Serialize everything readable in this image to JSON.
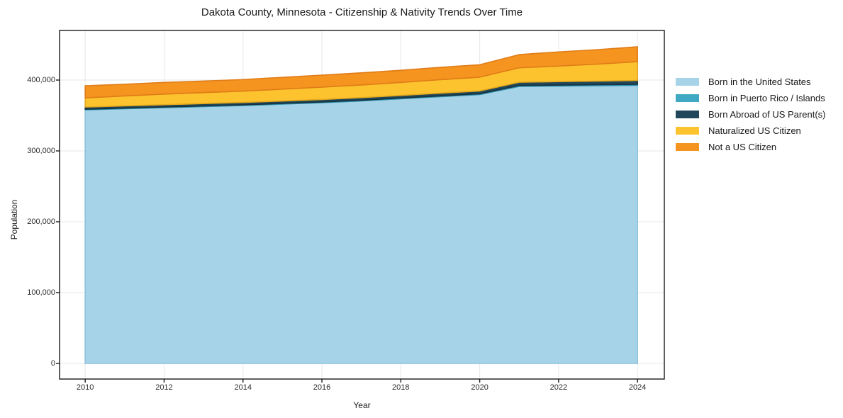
{
  "chart_data": {
    "type": "area",
    "stacked": true,
    "title": "Dakota County, Minnesota - Citizenship & Nativity Trends Over Time",
    "xlabel": "Year",
    "ylabel": "Population",
    "x": [
      2010,
      2011,
      2012,
      2013,
      2014,
      2015,
      2016,
      2017,
      2018,
      2019,
      2020,
      2021,
      2022,
      2023,
      2024
    ],
    "series": [
      {
        "name": "Born in the United States",
        "color": "#a6d3e8",
        "edge_color": "#8cc1dc",
        "values": [
          358000,
          359500,
          361000,
          362500,
          364000,
          366000,
          368000,
          370500,
          373500,
          376500,
          379500,
          391000,
          391500,
          392000,
          392500
        ]
      },
      {
        "name": "Born in Puerto Rico / Islands",
        "color": "#3fa8c3",
        "edge_color": "#2d91ab",
        "values": [
          900,
          950,
          1000,
          1000,
          1050,
          1050,
          1100,
          1100,
          1150,
          1200,
          1200,
          1400,
          1450,
          1500,
          1500
        ]
      },
      {
        "name": "Born Abroad of US Parent(s)",
        "color": "#21475a",
        "edge_color": "#16313f",
        "values": [
          3000,
          3100,
          3200,
          3300,
          3400,
          3400,
          3500,
          3600,
          3700,
          3800,
          3900,
          4500,
          4800,
          5000,
          5500
        ]
      },
      {
        "name": "Naturalized US Citizen",
        "color": "#fcc32e",
        "edge_color": "#e3a81c",
        "values": [
          13000,
          14000,
          15000,
          15500,
          16000,
          16700,
          17400,
          17900,
          18300,
          19000,
          19500,
          20500,
          22000,
          24000,
          26500
        ]
      },
      {
        "name": "Not a US Citizen",
        "color": "#f5941f",
        "edge_color": "#e07c18",
        "values": [
          17000,
          16500,
          16500,
          16300,
          16300,
          16700,
          17000,
          17100,
          17200,
          17500,
          17500,
          18500,
          20000,
          20500,
          21000
        ]
      }
    ],
    "x_ticks": [
      2010,
      2012,
      2014,
      2016,
      2018,
      2020,
      2022,
      2024
    ],
    "x_tick_labels": [
      "2010",
      "2012",
      "2014",
      "2016",
      "2018",
      "2020",
      "2022",
      "2024"
    ],
    "y_ticks": [
      0,
      100000,
      200000,
      300000,
      400000
    ],
    "y_tick_labels": [
      "0",
      "100,000",
      "200,000",
      "300,000",
      "400,000"
    ],
    "xlim": [
      2009.35,
      2024.68
    ],
    "ylim": [
      -22000,
      470000
    ],
    "grid": true,
    "grid_color": "#e7e7e7",
    "spine_color": "#1a1a1a",
    "legend_position": "right"
  }
}
